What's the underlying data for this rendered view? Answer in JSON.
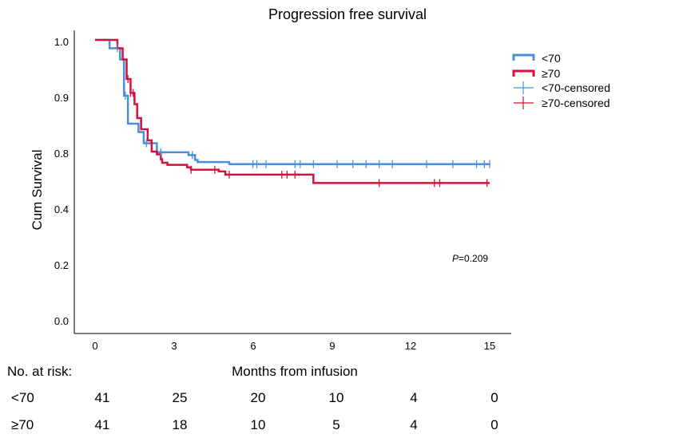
{
  "chart_data": {
    "type": "line",
    "title": "Progression free survival",
    "xlabel": "Months from infusion",
    "ylabel": "Cum Survival",
    "x_ticks": [
      "0",
      "3",
      "6",
      "9",
      "12",
      "15"
    ],
    "x_tick_values": [
      0,
      3,
      6,
      9,
      12,
      15
    ],
    "y_tick_labels": [
      "1.0",
      "0.9",
      "0.8",
      "0.4",
      "0.2",
      "0.0"
    ],
    "xlim": [
      0,
      15
    ],
    "grid": false,
    "legend_position": "top-right",
    "legend": [
      "<70",
      "≥70",
      "<70-censored",
      "≥70-censored"
    ],
    "annotation": {
      "p_label": "P",
      "p_value": "=0.209"
    },
    "series": [
      {
        "name": "<70",
        "color": "#4a8fdb",
        "steps": [
          {
            "x": 0,
            "y": 1.0
          },
          {
            "x": 0.55,
            "y": 0.985
          },
          {
            "x": 0.95,
            "y": 0.965
          },
          {
            "x": 1.1,
            "y": 0.9
          },
          {
            "x": 1.25,
            "y": 0.85
          },
          {
            "x": 1.65,
            "y": 0.835
          },
          {
            "x": 1.85,
            "y": 0.815
          },
          {
            "x": 2.35,
            "y": 0.795
          },
          {
            "x": 3.55,
            "y": 0.775
          },
          {
            "x": 3.8,
            "y": 0.74
          },
          {
            "x": 3.9,
            "y": 0.725
          },
          {
            "x": 5.1,
            "y": 0.71
          },
          {
            "x": 15.0,
            "y": 0.71
          }
        ],
        "censored": [
          0.85,
          1.15,
          1.95,
          2.5,
          3.7,
          6.0,
          6.15,
          6.5,
          7.6,
          7.8,
          8.3,
          9.2,
          9.8,
          10.3,
          10.8,
          11.3,
          12.6,
          13.6,
          14.5,
          14.8,
          15.0
        ]
      },
      {
        "name": "≥70",
        "color": "#d4123c",
        "steps": [
          {
            "x": 0,
            "y": 1.0
          },
          {
            "x": 0.85,
            "y": 0.985
          },
          {
            "x": 1.05,
            "y": 0.965
          },
          {
            "x": 1.2,
            "y": 0.93
          },
          {
            "x": 1.35,
            "y": 0.905
          },
          {
            "x": 1.5,
            "y": 0.885
          },
          {
            "x": 1.6,
            "y": 0.86
          },
          {
            "x": 1.75,
            "y": 0.84
          },
          {
            "x": 2.0,
            "y": 0.82
          },
          {
            "x": 2.15,
            "y": 0.8
          },
          {
            "x": 2.35,
            "y": 0.78
          },
          {
            "x": 2.5,
            "y": 0.745
          },
          {
            "x": 2.55,
            "y": 0.72
          },
          {
            "x": 2.75,
            "y": 0.705
          },
          {
            "x": 3.5,
            "y": 0.687
          },
          {
            "x": 3.65,
            "y": 0.67
          },
          {
            "x": 4.7,
            "y": 0.658
          },
          {
            "x": 4.95,
            "y": 0.635
          },
          {
            "x": 8.3,
            "y": 0.575
          },
          {
            "x": 15.0,
            "y": 0.575
          }
        ],
        "censored": [
          1.25,
          1.35,
          1.45,
          3.65,
          4.55,
          5.1,
          7.1,
          7.3,
          7.6,
          10.8,
          12.9,
          13.1,
          14.9
        ]
      }
    ]
  },
  "risk_table": {
    "header": "No. at risk:",
    "rows": [
      {
        "label": "<70",
        "values": [
          "41",
          "25",
          "20",
          "10",
          "4",
          "0"
        ]
      },
      {
        "label": "≥70",
        "values": [
          "41",
          "18",
          "10",
          "5",
          "4",
          "0"
        ]
      }
    ]
  }
}
